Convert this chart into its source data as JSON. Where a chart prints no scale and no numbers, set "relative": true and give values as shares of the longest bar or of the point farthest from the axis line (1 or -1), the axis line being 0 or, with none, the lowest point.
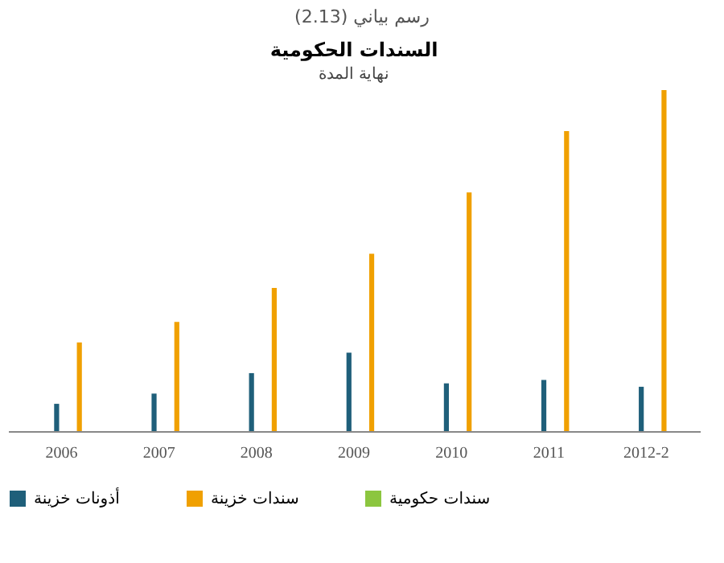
{
  "chart_data": {
    "type": "bar",
    "title": "السندات الحكومية",
    "subtitle": "نهاية المدة",
    "annotations": [
      "رسم بياني (2.13)"
    ],
    "categories": [
      "2006",
      "2007",
      "2008",
      "2009",
      "2010",
      "2011",
      "2012-2"
    ],
    "relative": true,
    "series": [
      {
        "name": "أذونات خزينة",
        "color": "#1f5f7a",
        "values": [
          0.08,
          0.11,
          0.17,
          0.23,
          0.14,
          0.15,
          0.13
        ]
      },
      {
        "name": "سندات خزينة",
        "color": "#f0a000",
        "values": [
          0.26,
          0.32,
          0.42,
          0.52,
          0.7,
          0.88,
          1
        ]
      },
      {
        "name": "سندات حكومية",
        "color": "#8cc63f",
        "values": [
          0,
          0,
          0,
          0,
          0,
          0,
          0
        ]
      }
    ],
    "grid": false,
    "legend": "bottom"
  }
}
